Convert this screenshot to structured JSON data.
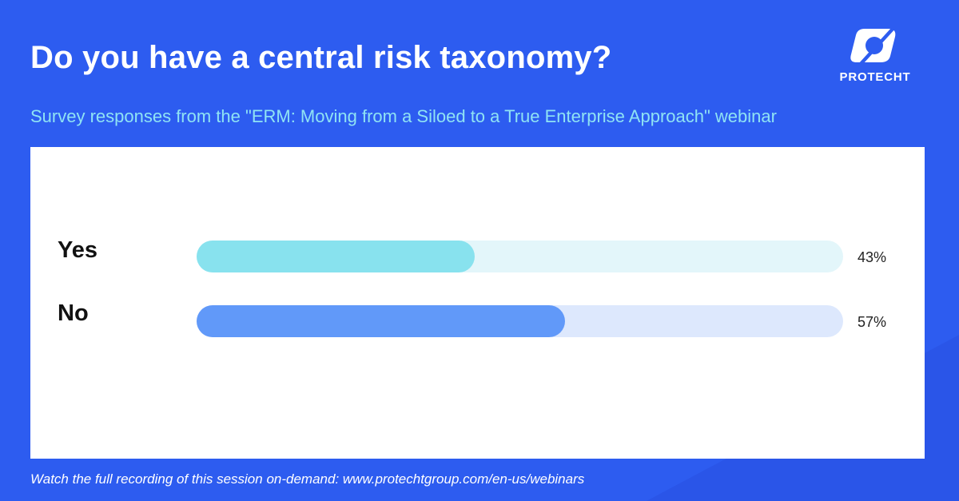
{
  "header": {
    "title": "Do you have a central risk taxonomy?",
    "subtitle": "Survey responses from the \"ERM: Moving from a Siloed to a True Enterprise Approach\" webinar"
  },
  "logo": {
    "brand": "PROTECHT",
    "icon": "protecht-logo-icon"
  },
  "footer": {
    "text": "Watch the full recording of this session on-demand: www.protechtgroup.com/en-us/webinars"
  },
  "colors": {
    "background": "#2d5cf0",
    "subtitle": "#8fe3f4",
    "yes_fill": "#88e2ee",
    "yes_track": "#e3f6fa",
    "no_fill": "#6199f9",
    "no_track": "#dde8fd"
  },
  "chart_data": {
    "type": "bar",
    "orientation": "horizontal",
    "title": "Do you have a central risk taxonomy?",
    "categories": [
      "Yes",
      "No"
    ],
    "values": [
      43,
      57
    ],
    "value_labels": [
      "43%",
      "57%"
    ],
    "unit": "%",
    "xlim": [
      0,
      100
    ],
    "grid": false,
    "legend": "none"
  }
}
